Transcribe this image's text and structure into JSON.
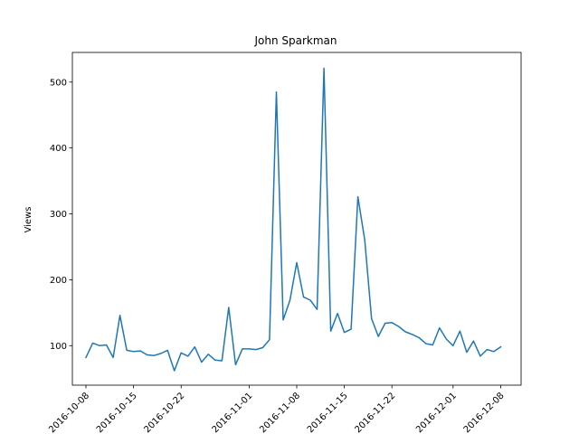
{
  "chart_data": {
    "type": "line",
    "title": "John Sparkman",
    "xlabel": "",
    "ylabel": "Views",
    "x_tick_labels": [
      "2016-10-08",
      "2016-10-15",
      "2016-10-22",
      "2016-11-01",
      "2016-11-08",
      "2016-11-15",
      "2016-11-22",
      "2016-12-01",
      "2016-12-08"
    ],
    "y_ticks": [
      100,
      200,
      300,
      400,
      500
    ],
    "xlim": [
      "2016-10-06",
      "2016-12-11"
    ],
    "ylim": [
      40,
      545
    ],
    "grid": false,
    "legend": "none",
    "colors": {
      "line": "#1f77b4"
    },
    "series": [
      {
        "x": [
          "2016-10-08",
          "2016-10-09",
          "2016-10-10",
          "2016-10-11",
          "2016-10-12",
          "2016-10-13",
          "2016-10-14",
          "2016-10-15",
          "2016-10-16",
          "2016-10-17",
          "2016-10-18",
          "2016-10-19",
          "2016-10-20",
          "2016-10-21",
          "2016-10-22",
          "2016-10-23",
          "2016-10-24",
          "2016-10-25",
          "2016-10-26",
          "2016-10-27",
          "2016-10-28",
          "2016-10-29",
          "2016-10-30",
          "2016-10-31",
          "2016-11-01",
          "2016-11-02",
          "2016-11-03",
          "2016-11-04",
          "2016-11-05",
          "2016-11-06",
          "2016-11-07",
          "2016-11-08",
          "2016-11-09",
          "2016-11-10",
          "2016-11-11",
          "2016-11-12",
          "2016-11-13",
          "2016-11-14",
          "2016-11-15",
          "2016-11-16",
          "2016-11-17",
          "2016-11-18",
          "2016-11-19",
          "2016-11-20",
          "2016-11-21",
          "2016-11-22",
          "2016-11-23",
          "2016-11-24",
          "2016-11-25",
          "2016-11-26",
          "2016-11-27",
          "2016-11-28",
          "2016-11-29",
          "2016-11-30",
          "2016-12-01",
          "2016-12-02",
          "2016-12-03",
          "2016-12-04",
          "2016-12-05",
          "2016-12-06",
          "2016-12-07",
          "2016-12-08"
        ],
        "values": [
          82,
          104,
          100,
          101,
          82,
          146,
          93,
          91,
          92,
          86,
          85,
          88,
          93,
          62,
          89,
          84,
          98,
          75,
          87,
          78,
          77,
          158,
          71,
          95,
          95,
          94,
          97,
          109,
          485,
          139,
          169,
          226,
          174,
          169,
          155,
          521,
          122,
          149,
          120,
          125,
          326,
          260,
          141,
          114,
          134,
          135,
          129,
          121,
          117,
          112,
          103,
          101,
          127,
          110,
          100,
          122,
          90,
          107,
          84,
          94,
          91,
          98
        ]
      }
    ]
  }
}
